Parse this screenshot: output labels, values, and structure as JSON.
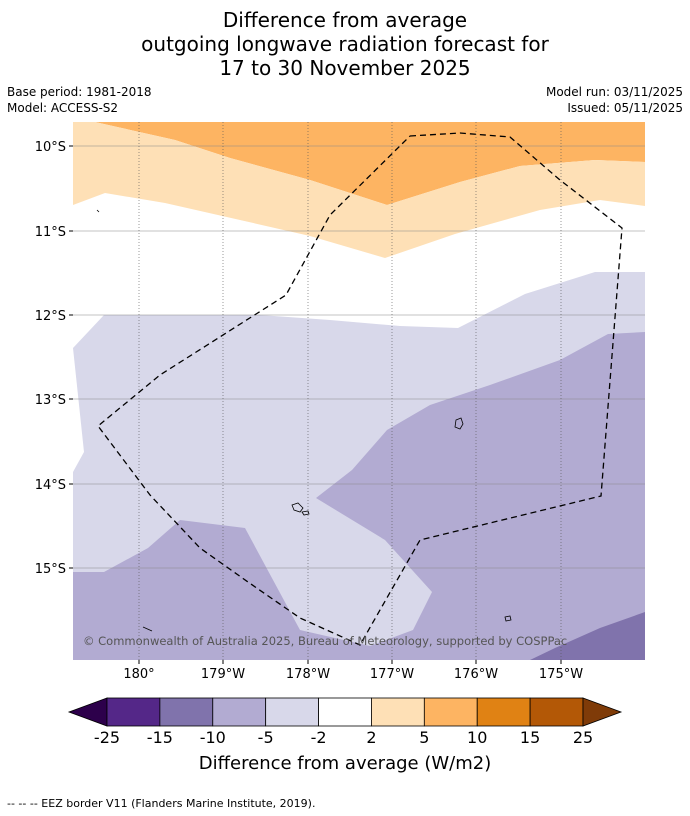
{
  "title": {
    "line1": "Difference from average",
    "line2": "outgoing longwave radiation forecast for",
    "line3": "17 to 30 November 2025"
  },
  "meta": {
    "base_period": "Base period: 1981-2018",
    "model": "Model: ACCESS-S2",
    "model_run": "Model run: 03/11/2025",
    "issued": "Issued: 05/11/2025"
  },
  "map": {
    "lat_labels": [
      "10°S",
      "11°S",
      "12°S",
      "13°S",
      "14°S",
      "15°S"
    ],
    "lon_labels": [
      "180°",
      "179°W",
      "178°W",
      "177°W",
      "176°W",
      "175°W"
    ],
    "copyright": "© Commonwealth of Australia 2025, Bureau of Meteorology, supported by COSPPac",
    "bands": [
      {
        "range": "10 to 5",
        "color": "#fdb462"
      },
      {
        "range": "5 to 2",
        "color": "#fee0b6"
      },
      {
        "range": "-2 to 2",
        "color": "#ffffff"
      },
      {
        "range": "-5 to -2",
        "color": "#d8d8ea"
      },
      {
        "range": "-10 to -5",
        "color": "#b2abd2"
      },
      {
        "range": "-15 to -10",
        "color": "#8073ac"
      }
    ]
  },
  "colorbar": {
    "title": "Difference from average (W/m2)",
    "ticks": [
      "-25",
      "-15",
      "-10",
      "-5",
      "-2",
      "2",
      "5",
      "10",
      "15",
      "25"
    ],
    "colors": [
      "#542788",
      "#8073ac",
      "#b2abd2",
      "#d8d8ea",
      "#ffffff",
      "#fee0b6",
      "#fdb462",
      "#e08214",
      "#b35806"
    ],
    "under_color": "#2d004b",
    "over_color": "#7f3b08"
  },
  "footer": "--  --  -- EEZ border V11 (Flanders Marine Institute, 2019)."
}
